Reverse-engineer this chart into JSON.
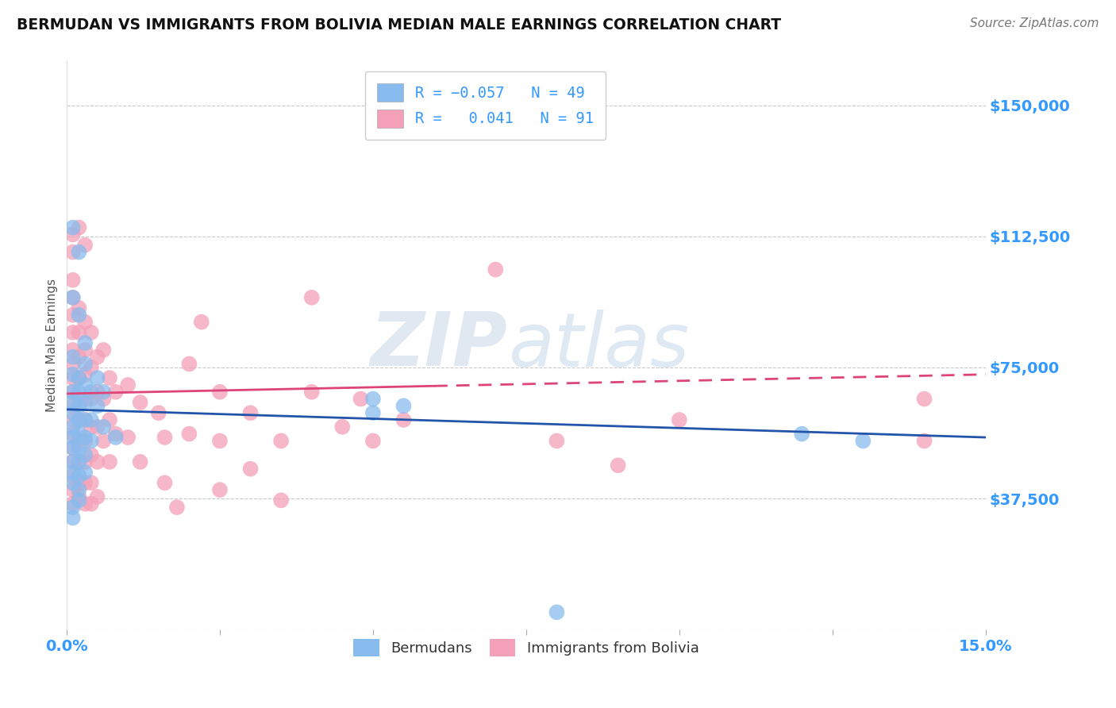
{
  "title": "BERMUDAN VS IMMIGRANTS FROM BOLIVIA MEDIAN MALE EARNINGS CORRELATION CHART",
  "source_text": "Source: ZipAtlas.com",
  "ylabel": "Median Male Earnings",
  "xlim": [
    0.0,
    0.15
  ],
  "ylim": [
    0,
    162500
  ],
  "yticks": [
    0,
    37500,
    75000,
    112500,
    150000
  ],
  "ytick_labels": [
    "",
    "$37,500",
    "$75,000",
    "$112,500",
    "$150,000"
  ],
  "xticks": [
    0.0,
    0.025,
    0.05,
    0.075,
    0.1,
    0.125,
    0.15
  ],
  "legend_labels_bottom": [
    "Bermudans",
    "Immigrants from Bolivia"
  ],
  "watermark_zip": "ZIP",
  "watermark_atlas": "atlas",
  "blue_color": "#88bbee",
  "pink_color": "#f4a0b8",
  "trendline_blue_color": "#2255aa",
  "trendline_pink_color": "#dd4477",
  "background_color": "#ffffff",
  "grid_color": "#bbbbbb",
  "axis_label_color": "#3399ff",
  "title_color": "#111111",
  "blue_trendline_y0": 63000,
  "blue_trendline_y1": 55000,
  "pink_trendline_y0": 67500,
  "pink_trendline_y1": 73000,
  "blue_points": [
    [
      0.001,
      115000
    ],
    [
      0.001,
      95000
    ],
    [
      0.002,
      108000
    ],
    [
      0.002,
      90000
    ],
    [
      0.003,
      82000
    ],
    [
      0.003,
      76000
    ],
    [
      0.001,
      78000
    ],
    [
      0.001,
      73000
    ],
    [
      0.001,
      68000
    ],
    [
      0.001,
      65000
    ],
    [
      0.001,
      62000
    ],
    [
      0.001,
      58000
    ],
    [
      0.001,
      55000
    ],
    [
      0.001,
      52000
    ],
    [
      0.001,
      48000
    ],
    [
      0.001,
      45000
    ],
    [
      0.001,
      42000
    ],
    [
      0.002,
      72000
    ],
    [
      0.002,
      68000
    ],
    [
      0.002,
      64000
    ],
    [
      0.002,
      60000
    ],
    [
      0.002,
      56000
    ],
    [
      0.002,
      52000
    ],
    [
      0.002,
      48000
    ],
    [
      0.002,
      44000
    ],
    [
      0.002,
      40000
    ],
    [
      0.002,
      37000
    ],
    [
      0.003,
      70000
    ],
    [
      0.003,
      65000
    ],
    [
      0.003,
      60000
    ],
    [
      0.003,
      55000
    ],
    [
      0.003,
      50000
    ],
    [
      0.003,
      45000
    ],
    [
      0.004,
      68000
    ],
    [
      0.004,
      60000
    ],
    [
      0.004,
      54000
    ],
    [
      0.005,
      72000
    ],
    [
      0.005,
      64000
    ],
    [
      0.006,
      68000
    ],
    [
      0.006,
      58000
    ],
    [
      0.008,
      55000
    ],
    [
      0.05,
      66000
    ],
    [
      0.05,
      62000
    ],
    [
      0.055,
      64000
    ],
    [
      0.08,
      5000
    ],
    [
      0.12,
      56000
    ],
    [
      0.13,
      54000
    ],
    [
      0.001,
      35000
    ],
    [
      0.001,
      32000
    ]
  ],
  "pink_points": [
    [
      0.001,
      113000
    ],
    [
      0.001,
      108000
    ],
    [
      0.002,
      115000
    ],
    [
      0.003,
      110000
    ],
    [
      0.001,
      100000
    ],
    [
      0.001,
      95000
    ],
    [
      0.001,
      90000
    ],
    [
      0.001,
      85000
    ],
    [
      0.001,
      80000
    ],
    [
      0.001,
      76000
    ],
    [
      0.001,
      72000
    ],
    [
      0.001,
      68000
    ],
    [
      0.001,
      64000
    ],
    [
      0.001,
      60000
    ],
    [
      0.001,
      56000
    ],
    [
      0.001,
      52000
    ],
    [
      0.001,
      48000
    ],
    [
      0.001,
      44000
    ],
    [
      0.001,
      40000
    ],
    [
      0.001,
      36000
    ],
    [
      0.002,
      92000
    ],
    [
      0.002,
      85000
    ],
    [
      0.002,
      78000
    ],
    [
      0.002,
      72000
    ],
    [
      0.002,
      66000
    ],
    [
      0.002,
      60000
    ],
    [
      0.002,
      54000
    ],
    [
      0.002,
      48000
    ],
    [
      0.002,
      42000
    ],
    [
      0.002,
      38000
    ],
    [
      0.003,
      88000
    ],
    [
      0.003,
      80000
    ],
    [
      0.003,
      73000
    ],
    [
      0.003,
      66000
    ],
    [
      0.003,
      60000
    ],
    [
      0.003,
      54000
    ],
    [
      0.003,
      48000
    ],
    [
      0.003,
      42000
    ],
    [
      0.003,
      36000
    ],
    [
      0.004,
      85000
    ],
    [
      0.004,
      75000
    ],
    [
      0.004,
      66000
    ],
    [
      0.004,
      58000
    ],
    [
      0.004,
      50000
    ],
    [
      0.004,
      42000
    ],
    [
      0.004,
      36000
    ],
    [
      0.005,
      78000
    ],
    [
      0.005,
      68000
    ],
    [
      0.005,
      58000
    ],
    [
      0.005,
      48000
    ],
    [
      0.005,
      38000
    ],
    [
      0.006,
      80000
    ],
    [
      0.006,
      66000
    ],
    [
      0.006,
      54000
    ],
    [
      0.007,
      72000
    ],
    [
      0.007,
      60000
    ],
    [
      0.007,
      48000
    ],
    [
      0.008,
      68000
    ],
    [
      0.008,
      56000
    ],
    [
      0.01,
      70000
    ],
    [
      0.01,
      55000
    ],
    [
      0.012,
      65000
    ],
    [
      0.012,
      48000
    ],
    [
      0.015,
      62000
    ],
    [
      0.016,
      55000
    ],
    [
      0.016,
      42000
    ],
    [
      0.018,
      35000
    ],
    [
      0.02,
      76000
    ],
    [
      0.02,
      56000
    ],
    [
      0.022,
      88000
    ],
    [
      0.025,
      68000
    ],
    [
      0.025,
      54000
    ],
    [
      0.025,
      40000
    ],
    [
      0.03,
      62000
    ],
    [
      0.03,
      46000
    ],
    [
      0.035,
      54000
    ],
    [
      0.035,
      37000
    ],
    [
      0.04,
      95000
    ],
    [
      0.04,
      68000
    ],
    [
      0.045,
      58000
    ],
    [
      0.048,
      66000
    ],
    [
      0.05,
      54000
    ],
    [
      0.055,
      60000
    ],
    [
      0.07,
      103000
    ],
    [
      0.08,
      54000
    ],
    [
      0.09,
      47000
    ],
    [
      0.1,
      60000
    ],
    [
      0.14,
      66000
    ],
    [
      0.14,
      54000
    ]
  ]
}
